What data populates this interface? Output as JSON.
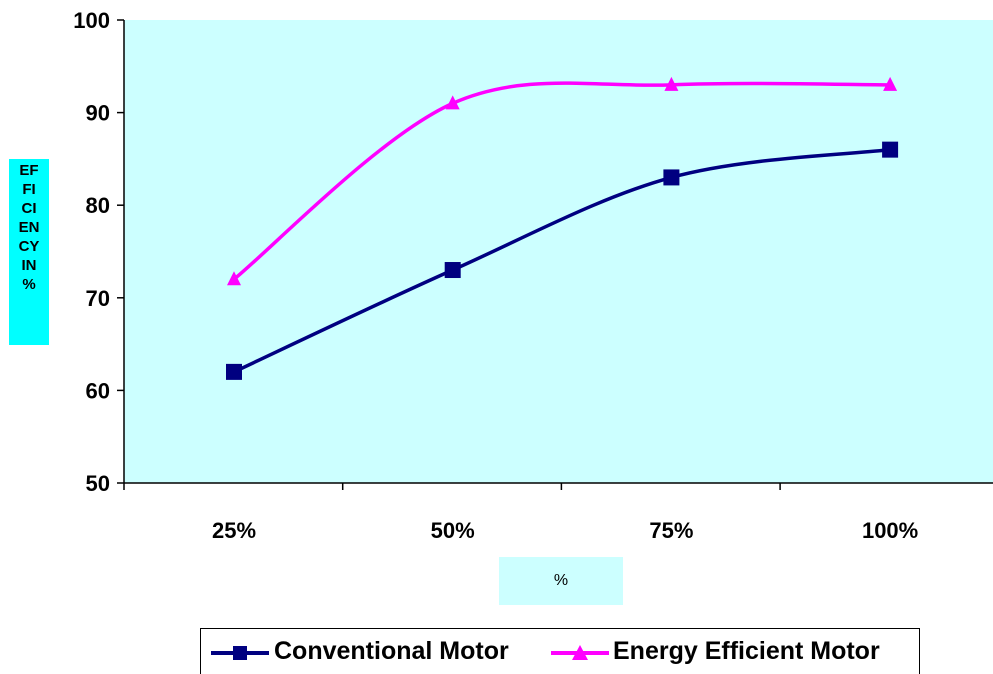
{
  "chart_data": {
    "type": "line",
    "categories": [
      "25%",
      "50%",
      "75%",
      "100%"
    ],
    "series": [
      {
        "name": "Conventional Motor",
        "values": [
          62,
          73,
          83,
          86
        ],
        "color": "#000080",
        "marker": "square"
      },
      {
        "name": "Energy Efficient Motor",
        "values": [
          72,
          91,
          93,
          93
        ],
        "color": "#ff00ff",
        "marker": "triangle"
      }
    ],
    "yticks": [
      50,
      60,
      70,
      80,
      90,
      100
    ],
    "ylim": [
      50,
      100
    ],
    "ylabel": "EFFICIENCY IN %",
    "xlabel": "%",
    "plot_background": "#ccffff",
    "ylabel_background": "#00ffff",
    "grid": false,
    "legend_position": "bottom"
  }
}
